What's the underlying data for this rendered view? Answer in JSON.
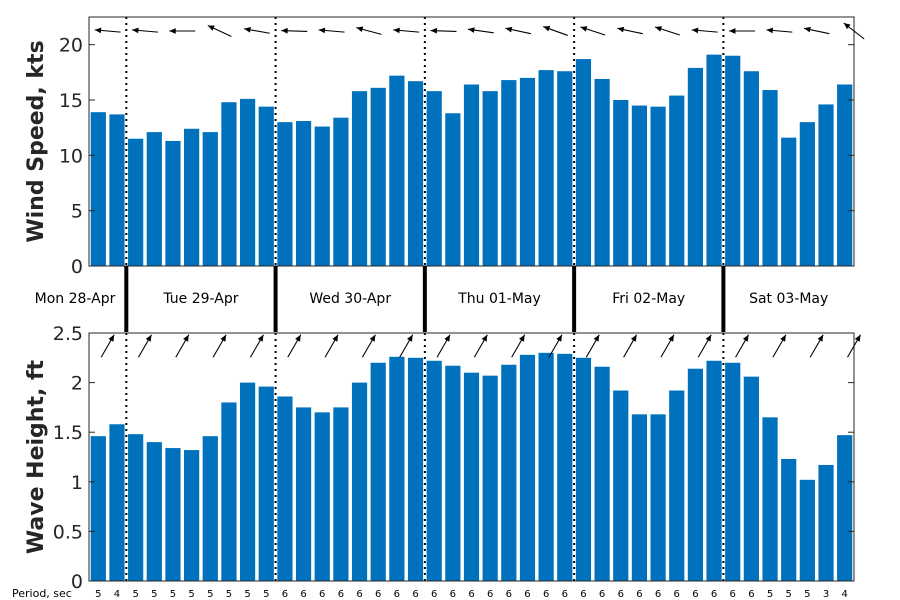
{
  "chart_data": {
    "type": "bar",
    "bar_color": "#0072BD",
    "days": [
      "Mon 28-Apr",
      "Tue 29-Apr",
      "Wed 30-Apr",
      "Thu 01-May",
      "Fri 02-May",
      "Sat 03-May"
    ],
    "wind": {
      "ylabel": "Wind Speed, kts",
      "ylim": [
        0,
        22.5
      ],
      "yticks": [
        "0",
        "5",
        "10",
        "15",
        "20"
      ],
      "values": [
        13.9,
        13.7,
        11.5,
        12.1,
        11.3,
        12.4,
        12.1,
        14.8,
        15.1,
        14.4,
        13.0,
        13.1,
        12.6,
        13.4,
        15.8,
        16.1,
        17.2,
        16.7,
        15.8,
        13.8,
        16.4,
        15.8,
        16.8,
        17.0,
        17.7,
        17.6,
        18.7,
        16.9,
        15.0,
        14.5,
        14.4,
        15.4,
        17.9,
        19.1,
        19.0,
        17.6,
        15.9,
        11.6,
        13.0,
        14.6,
        16.4
      ]
    },
    "wave": {
      "ylabel": "Wave Height, ft",
      "ylim": [
        0,
        2.5
      ],
      "yticks": [
        "0",
        "0.5",
        "1",
        "1.5",
        "2",
        "2.5"
      ],
      "values": [
        1.46,
        1.58,
        1.48,
        1.4,
        1.34,
        1.32,
        1.46,
        1.8,
        2.0,
        1.96,
        1.86,
        1.75,
        1.7,
        1.75,
        2.0,
        2.2,
        2.26,
        2.25,
        2.22,
        2.17,
        2.1,
        2.07,
        2.18,
        2.28,
        2.3,
        2.29,
        2.25,
        2.16,
        1.92,
        1.68,
        1.68,
        1.92,
        2.14,
        2.22,
        2.2,
        2.06,
        1.65,
        1.23,
        1.02,
        1.17,
        1.47
      ]
    },
    "period_label": "Period, sec",
    "periods": [
      "5",
      "4",
      "5",
      "5",
      "5",
      "5",
      "5",
      "5",
      "5",
      "5",
      "6",
      "6",
      "6",
      "6",
      "6",
      "6",
      "6",
      "6",
      "6",
      "6",
      "6",
      "6",
      "6",
      "6",
      "6",
      "6",
      "6",
      "6",
      "6",
      "6",
      "6",
      "6",
      "6",
      "6",
      "6",
      "6",
      "5",
      "5",
      "5",
      "3",
      "4"
    ],
    "wind_arrow_bearings_deg": [
      275,
      280,
      275,
      277,
      270,
      285,
      295,
      275,
      280,
      275,
      272,
      282,
      275,
      275,
      285,
      275,
      275,
      278,
      272,
      275,
      278,
      278,
      282,
      285,
      290,
      278,
      288,
      275,
      282,
      280,
      288,
      278,
      275,
      278,
      270,
      280,
      275,
      275,
      282,
      300,
      308
    ],
    "wave_arrow_bearings_deg": [
      30,
      30,
      30,
      30,
      30,
      30,
      30,
      30,
      30,
      30,
      30,
      30,
      30,
      30,
      30,
      30,
      30,
      30,
      30,
      30,
      30,
      30,
      30,
      30,
      30,
      30,
      30,
      30,
      30,
      30,
      30,
      30,
      30,
      30,
      30,
      30,
      30,
      30,
      30,
      30,
      30
    ]
  }
}
